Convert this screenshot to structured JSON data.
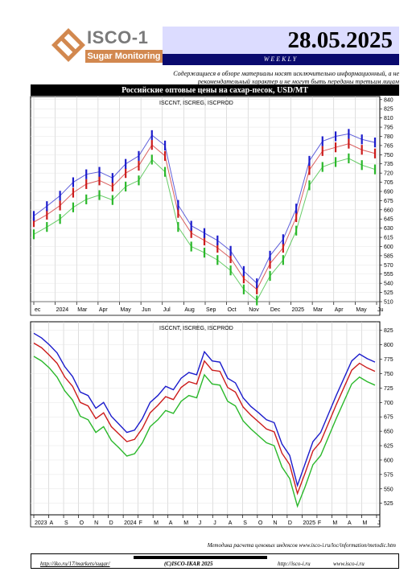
{
  "logo": {
    "name": "ISCO-1",
    "sub": "Sugar Monitoring",
    "colors": {
      "mark": "#d2884f",
      "text": "#7a7a7a"
    }
  },
  "header": {
    "date": "28.05.2025",
    "weekly": "WEEKLY",
    "disclaimer": "Содержащиеся в обзоре материалы носят исключительно информационный, а не рекомендательный характер и не могут быть переданы третьим лицам"
  },
  "title": "Российские оптовые цены на сахар-песок, USD/MT",
  "chart_data": [
    {
      "type": "bar",
      "description_label": "ISCCNT, ISCREG, ISCPROD",
      "x_tick_labels": [
        "ec",
        "2024",
        "Mar",
        "Apr",
        "May",
        "Jun",
        "Jul",
        "Aug",
        "Sep",
        "Oct",
        "Nov",
        "Dec",
        "2025",
        "Mar",
        "Apr",
        "May",
        "Ju"
      ],
      "ylim": [
        510,
        845
      ],
      "y_ticks": [
        840,
        825,
        810,
        795,
        780,
        765,
        750,
        735,
        720,
        705,
        690,
        675,
        660,
        645,
        630,
        615,
        600,
        585,
        570,
        555,
        540,
        525,
        510
      ],
      "grid": true,
      "series": [
        {
          "name": "ISCCNT",
          "color": "#1c1ccc",
          "values": [
            650,
            666,
            683,
            705,
            718,
            722,
            712,
            735,
            748,
            782,
            765,
            668,
            634,
            622,
            610,
            593,
            560,
            540,
            585,
            612,
            662,
            740,
            772,
            780,
            784,
            775,
            770
          ]
        },
        {
          "name": "ISCREG",
          "color": "#cc1c1c",
          "values": [
            640,
            652,
            667,
            688,
            702,
            708,
            698,
            720,
            732,
            766,
            748,
            655,
            622,
            610,
            598,
            581,
            548,
            530,
            572,
            598,
            648,
            725,
            756,
            762,
            768,
            758,
            752
          ]
        },
        {
          "name": "ISCPROD",
          "color": "#2ab82a",
          "values": [
            620,
            632,
            645,
            664,
            677,
            684,
            676,
            698,
            708,
            742,
            722,
            632,
            600,
            590,
            578,
            561,
            530,
            512,
            552,
            578,
            626,
            700,
            730,
            738,
            744,
            733,
            726
          ]
        }
      ]
    },
    {
      "type": "line",
      "description_label": "ISCCNT, ISCREG, ISCPROD",
      "x_tick_labels": [
        "2023",
        "A",
        "S",
        "O",
        "N",
        "D",
        "2024",
        "F",
        "M",
        "A",
        "M",
        "J",
        "J",
        "A",
        "S",
        "O",
        "N",
        "D",
        "2025",
        "F",
        "M",
        "A",
        "M",
        "J"
      ],
      "ylim": [
        505,
        840
      ],
      "y_ticks": [
        825,
        800,
        775,
        750,
        725,
        700,
        675,
        650,
        625,
        600,
        575,
        550,
        525
      ],
      "grid": true,
      "series": [
        {
          "name": "ISCCNT",
          "color": "#1c1ccc",
          "values": [
            820,
            812,
            800,
            786,
            762,
            745,
            718,
            712,
            690,
            700,
            676,
            662,
            648,
            652,
            672,
            700,
            712,
            728,
            722,
            742,
            752,
            748,
            788,
            772,
            770,
            742,
            734,
            708,
            693,
            682,
            670,
            665,
            628,
            608,
            556,
            594,
            632,
            648,
            680,
            712,
            742,
            772,
            784,
            776,
            770
          ]
        },
        {
          "name": "ISCREG",
          "color": "#cc1c1c",
          "values": [
            803,
            795,
            782,
            768,
            744,
            728,
            700,
            694,
            672,
            682,
            658,
            645,
            632,
            636,
            655,
            682,
            695,
            710,
            705,
            726,
            736,
            732,
            772,
            756,
            754,
            726,
            718,
            692,
            678,
            666,
            654,
            649,
            612,
            592,
            542,
            578,
            616,
            632,
            664,
            696,
            726,
            756,
            768,
            760,
            754
          ]
        },
        {
          "name": "ISCPROD",
          "color": "#2ab82a",
          "values": [
            780,
            772,
            760,
            744,
            720,
            704,
            676,
            670,
            648,
            658,
            634,
            621,
            607,
            611,
            630,
            658,
            670,
            686,
            681,
            702,
            712,
            708,
            748,
            732,
            730,
            702,
            694,
            668,
            654,
            642,
            630,
            625,
            588,
            568,
            520,
            554,
            592,
            608,
            640,
            672,
            702,
            732,
            744,
            736,
            730
          ]
        }
      ]
    }
  ],
  "footer": {
    "methodology": "Методика расчета ценовых индексов www.isco-i.ru/loc/information/metodic.htm",
    "link_1": "http://iko.ru/17/markets/sugar/",
    "brand": "(С)ISCO-IKAR 2025",
    "link_2": "http://isco-i.ru",
    "link_3": "www.isco-i.ru"
  }
}
